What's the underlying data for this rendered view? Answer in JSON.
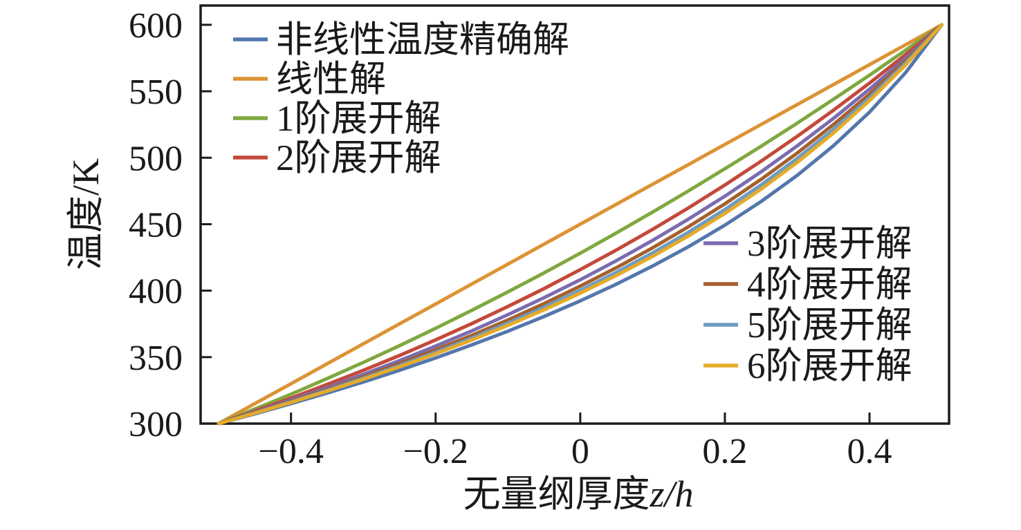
{
  "figure": {
    "background": "#ffffff",
    "frame_color": "#1c1c1c",
    "text_color": "#1a1a1a"
  },
  "chart_data": {
    "type": "line",
    "title": "",
    "xlabel_text": "无量纲厚度",
    "xlabel_math": "z/h",
    "ylabel": "温度/K",
    "xlim": [
      -0.525,
      0.51
    ],
    "ylim": [
      300,
      614.5
    ],
    "grid": false,
    "xticks": [
      -0.4,
      -0.2,
      0,
      0.2,
      0.4
    ],
    "xtick_labels": [
      "−0.4",
      "−0.2",
      "0",
      "0.2",
      "0.4"
    ],
    "yticks": [
      300,
      350,
      400,
      450,
      500,
      550,
      600
    ],
    "ytick_labels": [
      "300",
      "350",
      "400",
      "450",
      "500",
      "550",
      "600"
    ],
    "x": [
      -0.5,
      -0.45,
      -0.4,
      -0.35,
      -0.3,
      -0.25,
      -0.2,
      -0.15,
      -0.1,
      -0.05,
      0,
      0.05,
      0.1,
      0.15,
      0.2,
      0.25,
      0.3,
      0.35,
      0.4,
      0.45,
      0.5
    ],
    "series": [
      {
        "name": "非线性温度精确解",
        "color": "#5377ad",
        "values": [
          300,
          307.3,
          315.0,
          323.0,
          331.3,
          340.1,
          349.4,
          359.2,
          369.5,
          380.6,
          392.3,
          404.9,
          418.5,
          433.2,
          449.3,
          467.0,
          486.7,
          508.9,
          534.3,
          564.1,
          600
        ]
      },
      {
        "name": "线性解",
        "color": "#dd9333",
        "values": [
          300,
          315,
          330,
          345,
          360,
          375,
          390,
          405,
          420,
          435,
          450,
          465,
          480,
          495,
          510,
          525,
          540,
          555,
          570,
          585,
          600
        ]
      },
      {
        "name": "1阶展开解",
        "color": "#7fa83f",
        "values": [
          300,
          310.9,
          322.1,
          333.9,
          346.0,
          358.6,
          371.7,
          385.2,
          399.1,
          413.4,
          428.2,
          443.4,
          459.1,
          475.2,
          491.7,
          508.6,
          526.0,
          543.9,
          562.1,
          580.9,
          600
        ]
      },
      {
        "name": "2阶展开解",
        "color": "#c4493a",
        "values": [
          300,
          309.4,
          319.2,
          329.4,
          340.1,
          351.2,
          363.0,
          375.2,
          388.1,
          401.6,
          415.8,
          430.6,
          446.1,
          462.4,
          479.5,
          497.4,
          516.1,
          535.7,
          556.2,
          577.6,
          600
        ]
      },
      {
        "name": "3阶展开解",
        "color": "#7b6bb0",
        "values": [
          300,
          308.6,
          317.7,
          327.1,
          337.0,
          347.3,
          358.3,
          369.7,
          381.9,
          394.7,
          408.2,
          422.6,
          437.8,
          454.0,
          471.1,
          489.4,
          508.9,
          529.5,
          551.6,
          575.0,
          600
        ]
      },
      {
        "name": "4阶展开解",
        "color": "#a5602d",
        "values": [
          300,
          308.2,
          316.8,
          325.8,
          335.2,
          345.1,
          355.5,
          366.4,
          378.0,
          390.3,
          403.4,
          417.3,
          432.2,
          448.2,
          465.3,
          483.7,
          503.5,
          524.9,
          547.9,
          572.9,
          600
        ]
      },
      {
        "name": "5阶展开解",
        "color": "#6d9cc4",
        "values": [
          300,
          308.0,
          316.3,
          325.0,
          334.1,
          343.6,
          353.7,
          364.3,
          375.6,
          387.5,
          400.2,
          413.8,
          428.4,
          444.1,
          461.1,
          479.5,
          499.5,
          521.3,
          545.1,
          571.3,
          600
        ]
      },
      {
        "name": "6阶展开解",
        "color": "#e5ab28",
        "values": [
          300,
          307.8,
          315.9,
          324.4,
          333.3,
          342.7,
          352.5,
          362.9,
          373.9,
          385.6,
          398.1,
          411.4,
          425.8,
          441.3,
          458.1,
          476.4,
          496.5,
          518.5,
          542.9,
          569.9,
          600
        ]
      }
    ],
    "legends": [
      {
        "position": "upper-left",
        "entries_idx": [
          0,
          1,
          2,
          3
        ]
      },
      {
        "position": "middle-right",
        "entries_idx": [
          4,
          5,
          6,
          7
        ]
      }
    ]
  }
}
